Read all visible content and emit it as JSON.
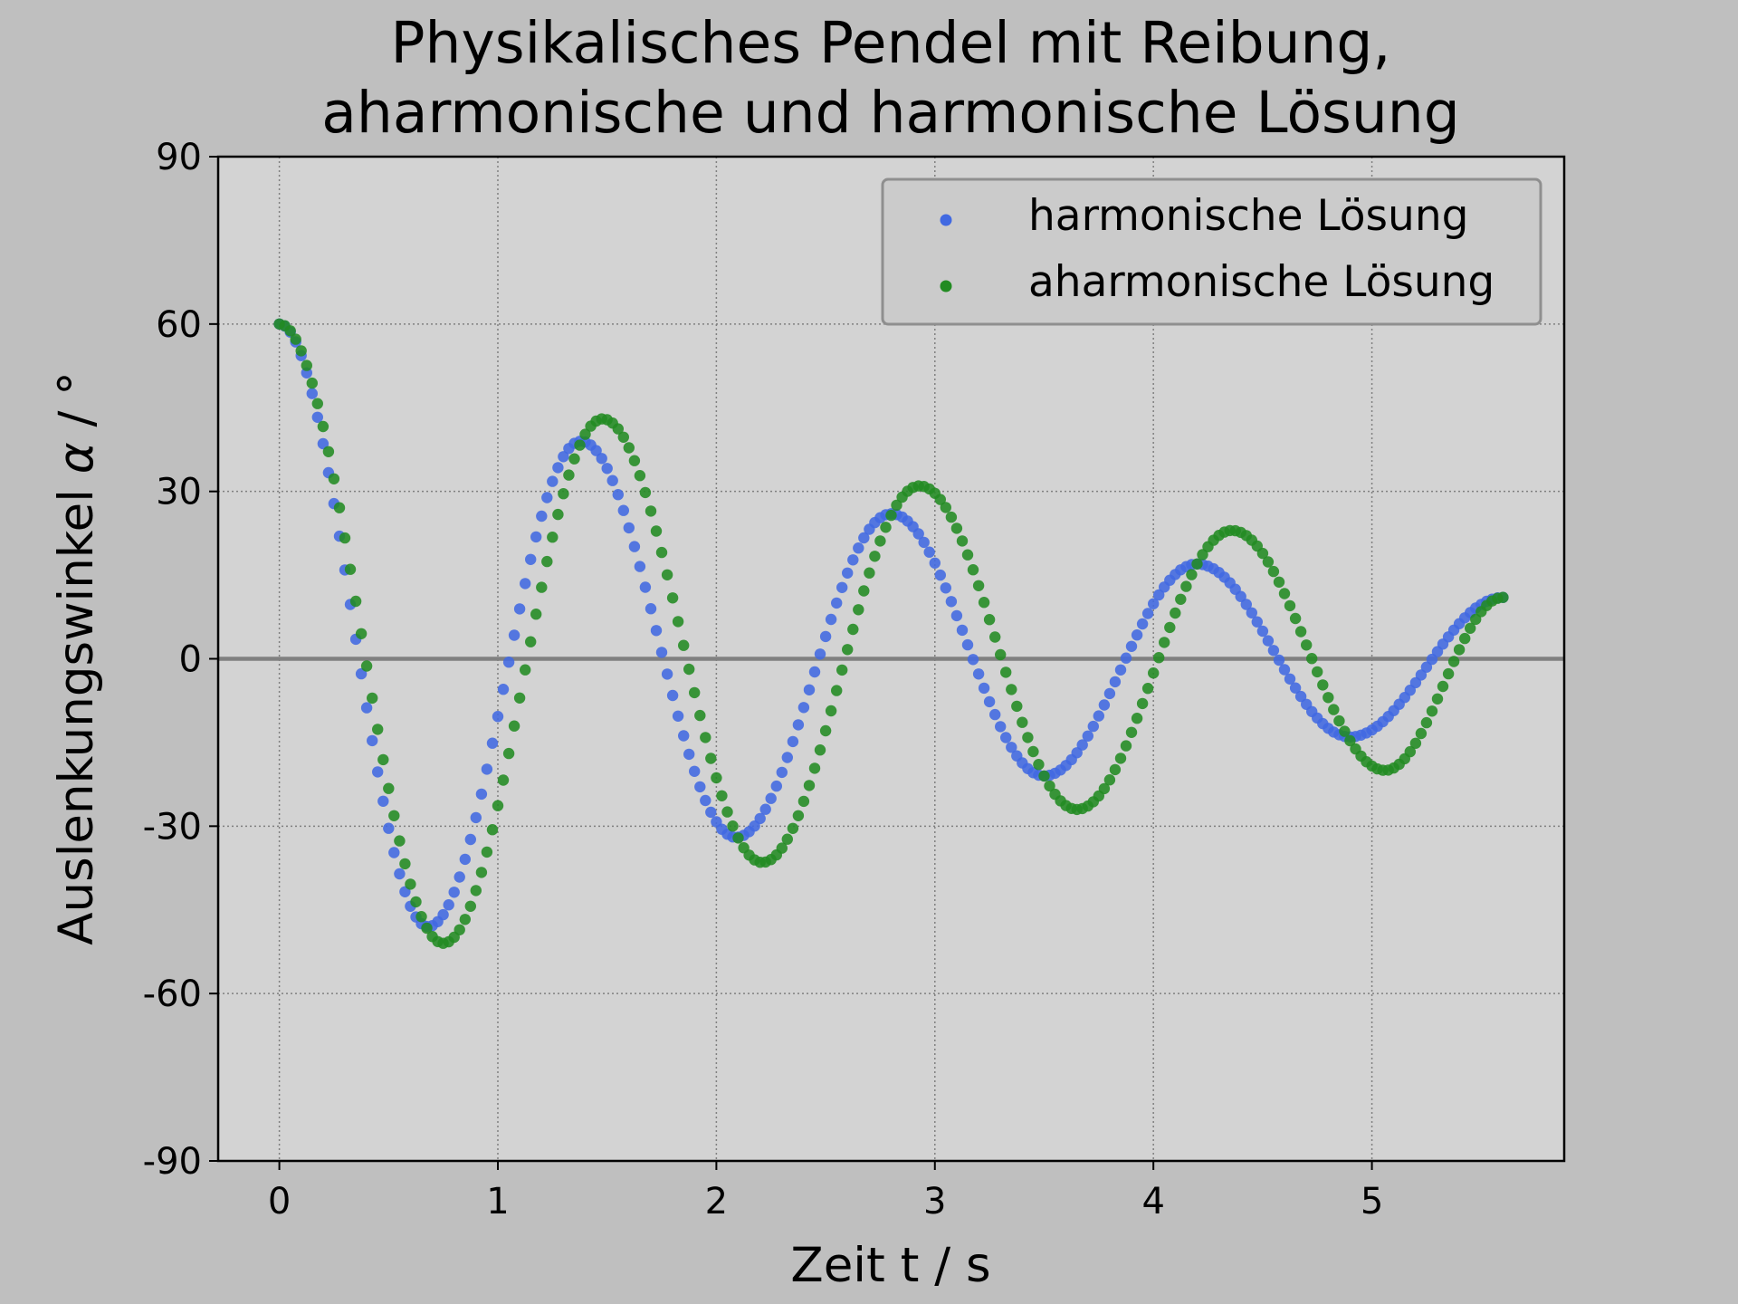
{
  "chart_data": {
    "type": "scatter",
    "title": [
      "Physikalisches Pendel mit Reibung,",
      "aharmonische und harmonische Lösung"
    ],
    "xlabel": "Zeit t / s",
    "ylabel_prefix": "Auslenkungswinkel ",
    "ylabel_symbol": "α",
    "ylabel_suffix": " / °",
    "xlim": [
      -0.28,
      5.88
    ],
    "ylim": [
      -90,
      90
    ],
    "xticks": [
      0,
      1,
      2,
      3,
      4,
      5
    ],
    "xtick_labels": [
      "0",
      "1",
      "2",
      "3",
      "4",
      "5"
    ],
    "yticks": [
      90,
      60,
      30,
      0,
      -30,
      -60,
      -90
    ],
    "ytick_labels": [
      "90",
      "60",
      "30",
      "0",
      "-30",
      "-60",
      "-90"
    ],
    "grid": true,
    "zero_line": true,
    "legend_position": "top-right",
    "background_color": "#bfbfbf",
    "plot_background_color": "#d3d3d3",
    "x_range": [
      0,
      5.6
    ],
    "point_spacing": 0.025,
    "series": [
      {
        "name": "harmonische Lösung",
        "color": "#4169e1",
        "start_value": 60,
        "extrema": [
          {
            "t": 0.0,
            "v": 60
          },
          {
            "t": 0.68,
            "v": -48
          },
          {
            "t": 1.38,
            "v": 39
          },
          {
            "t": 2.09,
            "v": -32
          },
          {
            "t": 2.8,
            "v": 26
          },
          {
            "t": 3.5,
            "v": -21
          },
          {
            "t": 4.2,
            "v": 17
          },
          {
            "t": 4.9,
            "v": -14
          },
          {
            "t": 5.6,
            "v": 11
          }
        ]
      },
      {
        "name": "aharmonische Lösung",
        "color": "#228b22",
        "start_value": 60,
        "extrema": [
          {
            "t": 0.0,
            "v": 60
          },
          {
            "t": 0.75,
            "v": -51
          },
          {
            "t": 1.48,
            "v": 43
          },
          {
            "t": 2.21,
            "v": -36.5
          },
          {
            "t": 2.93,
            "v": 31
          },
          {
            "t": 3.65,
            "v": -27
          },
          {
            "t": 4.36,
            "v": 23
          },
          {
            "t": 5.06,
            "v": -20
          },
          {
            "t": 5.6,
            "v": 11
          }
        ]
      }
    ]
  }
}
